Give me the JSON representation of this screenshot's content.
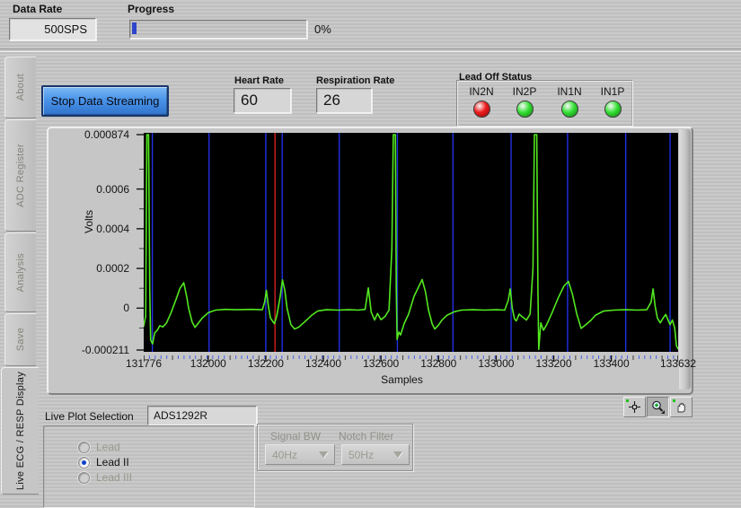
{
  "header": {
    "data_rate_label": "Data Rate",
    "data_rate_value": "500SPS",
    "progress_label": "Progress",
    "progress_percent": "0%"
  },
  "tabs": [
    {
      "label": "About",
      "selected": false
    },
    {
      "label": "ADC Register",
      "selected": false
    },
    {
      "label": "Analysis",
      "selected": false
    },
    {
      "label": "Save",
      "selected": false
    },
    {
      "label": "Live ECG / RESP Display",
      "selected": true
    }
  ],
  "controls": {
    "stop_button_label": "Stop Data Streaming",
    "heart_rate_label": "Heart Rate",
    "heart_rate_value": "60",
    "respiration_rate_label": "Respiration Rate",
    "respiration_rate_value": "26"
  },
  "lead_off": {
    "label": "Lead Off Status",
    "leds": [
      {
        "name": "IN2N",
        "state": "off",
        "color": "#ee1b1b",
        "dark": "#8f0d0d"
      },
      {
        "name": "IN2P",
        "state": "on",
        "color": "#35e035",
        "dark": "#168216"
      },
      {
        "name": "IN1N",
        "state": "on",
        "color": "#35e035",
        "dark": "#168216"
      },
      {
        "name": "IN1P",
        "state": "on",
        "color": "#35e035",
        "dark": "#168216"
      }
    ]
  },
  "chart_data": {
    "type": "line",
    "title": "",
    "xlabel": "Samples",
    "ylabel": "Volts",
    "xlim": [
      131776,
      133632
    ],
    "ylim": [
      -0.000211,
      0.000874
    ],
    "plot_bg": "#000000",
    "trace_color": "#52e81f",
    "gridline_color": "#2230e2",
    "cursor_color": "#d42020",
    "x_ticks": [
      131776,
      132000,
      132200,
      132400,
      132600,
      132800,
      133000,
      133200,
      133400,
      133632
    ],
    "x_minor_step": 20,
    "x_mid_step": 100,
    "y_ticks": [
      {
        "label": "0.000874",
        "v": 0.000874
      },
      {
        "label": "0.0006",
        "v": 0.0006
      },
      {
        "label": "0.0004",
        "v": 0.0004
      },
      {
        "label": "0.0002",
        "v": 0.0002
      },
      {
        "label": "0",
        "v": 0
      },
      {
        "label": "-0.000211",
        "v": -0.000211
      }
    ],
    "y_minor": [
      0.0007,
      0.0005,
      0.0003,
      0.0001,
      -0.0001
    ],
    "v_gridlines": [
      131806,
      132003,
      132200,
      132257,
      132455,
      132657,
      132850,
      133052,
      133248,
      133450,
      133604
    ],
    "cursor_x": 132232,
    "series": [
      {
        "name": "Lead II ECG",
        "points": [
          [
            131776,
            -9e-05
          ],
          [
            131783,
            -4e-05
          ],
          [
            131787,
            0.000874
          ],
          [
            131793,
            0.000874
          ],
          [
            131797,
            0.0001
          ],
          [
            131800,
            -0.00016
          ],
          [
            131807,
            -0.00018
          ],
          [
            131814,
            -0.000125
          ],
          [
            131823,
            -0.000111
          ],
          [
            131832,
            -8.8e-05
          ],
          [
            131842,
            -9.5e-05
          ],
          [
            131855,
            -7.5e-05
          ],
          [
            131870,
            -2.7e-05
          ],
          [
            131888,
            4.3e-05
          ],
          [
            131902,
            0.0001
          ],
          [
            131915,
            0.000128
          ],
          [
            131925,
            6e-05
          ],
          [
            131932,
            0
          ],
          [
            131944,
            -7e-05
          ],
          [
            131954,
            -9.7e-05
          ],
          [
            131966,
            -7.5e-05
          ],
          [
            131979,
            -5e-05
          ],
          [
            132001,
            -2.2e-05
          ],
          [
            132026,
            -1e-05
          ],
          [
            132060,
            -6e-06
          ],
          [
            132100,
            -8e-06
          ],
          [
            132150,
            -6e-06
          ],
          [
            132188,
            -8e-06
          ],
          [
            132196,
            3e-05
          ],
          [
            132202,
            8.9e-05
          ],
          [
            132209,
            1e-05
          ],
          [
            132216,
            -5e-05
          ],
          [
            132230,
            -7.8e-05
          ],
          [
            132238,
            -4e-05
          ],
          [
            132250,
            6e-05
          ],
          [
            132258,
            0.000142
          ],
          [
            132266,
            9e-05
          ],
          [
            132274,
            0
          ],
          [
            132287,
            -8.2e-05
          ],
          [
            132300,
            -0.000105
          ],
          [
            132315,
            -9.5e-05
          ],
          [
            132338,
            -6.5e-05
          ],
          [
            132360,
            -3.5e-05
          ],
          [
            132380,
            -1.5e-05
          ],
          [
            132410,
            -8e-06
          ],
          [
            132450,
            -1e-05
          ],
          [
            132490,
            -8e-06
          ],
          [
            132520,
            -1e-05
          ],
          [
            132545,
            -6e-06
          ],
          [
            132556,
            0.000102
          ],
          [
            132566,
            -2e-05
          ],
          [
            132578,
            -6e-05
          ],
          [
            132588,
            -2.7e-05
          ],
          [
            132600,
            -5.8e-05
          ],
          [
            132615,
            -4e-05
          ],
          [
            132628,
            -1e-05
          ],
          [
            132638,
            0.0003
          ],
          [
            132643,
            0.000874
          ],
          [
            132650,
            0.000874
          ],
          [
            132653,
            0.0001
          ],
          [
            132656,
            -0.000157
          ],
          [
            132662,
            -0.00012
          ],
          [
            132668,
            -0.000135
          ],
          [
            132680,
            -8e-05
          ],
          [
            132696,
            -3e-05
          ],
          [
            132715,
            6e-05
          ],
          [
            132735,
            0.00012
          ],
          [
            132743,
            0.000144
          ],
          [
            132755,
            8e-05
          ],
          [
            132765,
            -1e-05
          ],
          [
            132778,
            -8e-05
          ],
          [
            132787,
            -0.000105
          ],
          [
            132800,
            -8.5e-05
          ],
          [
            132812,
            -6e-05
          ],
          [
            132830,
            -3.5e-05
          ],
          [
            132855,
            -1.8e-05
          ],
          [
            132880,
            -1e-05
          ],
          [
            132920,
            -8e-06
          ],
          [
            132960,
            -1e-05
          ],
          [
            133000,
            -8e-06
          ],
          [
            133030,
            -1e-05
          ],
          [
            133042,
            4e-05
          ],
          [
            133049,
            9.7e-05
          ],
          [
            133056,
            0
          ],
          [
            133064,
            -5.5e-05
          ],
          [
            133070,
            -6.4e-05
          ],
          [
            133080,
            -3e-05
          ],
          [
            133092,
            -4.5e-05
          ],
          [
            133105,
            -6e-05
          ],
          [
            133118,
            -3e-05
          ],
          [
            133128,
            0.0002
          ],
          [
            133133,
            0.000874
          ],
          [
            133141,
            0.000874
          ],
          [
            133145,
            0.0001
          ],
          [
            133148,
            -0.000208
          ],
          [
            133155,
            -7.4e-05
          ],
          [
            133164,
            -0.000111
          ],
          [
            133175,
            -8.5e-05
          ],
          [
            133195,
            -2e-05
          ],
          [
            133215,
            5e-05
          ],
          [
            133235,
            0.00011
          ],
          [
            133251,
            0.000135
          ],
          [
            133265,
            7e-05
          ],
          [
            133280,
            -3e-05
          ],
          [
            133295,
            -0.000102
          ],
          [
            133310,
            -8.5e-05
          ],
          [
            133330,
            -6e-05
          ],
          [
            133345,
            -3.5e-05
          ],
          [
            133373,
            -1.5e-05
          ],
          [
            133410,
            -1e-05
          ],
          [
            133450,
            -8e-06
          ],
          [
            133490,
            -1e-05
          ],
          [
            133523,
            -8e-06
          ],
          [
            133538,
            3e-05
          ],
          [
            133545,
            9.7e-05
          ],
          [
            133552,
            1e-05
          ],
          [
            133560,
            -5e-05
          ],
          [
            133570,
            -7.4e-05
          ],
          [
            133580,
            -5e-05
          ],
          [
            133589,
            -3.2e-05
          ],
          [
            133597,
            -6e-05
          ],
          [
            133604,
            -8.3e-05
          ],
          [
            133612,
            -6e-05
          ],
          [
            133620,
            -0.0001
          ],
          [
            133626,
            -0.00019
          ],
          [
            133632,
            -0.000205
          ]
        ]
      }
    ]
  },
  "palette": {
    "tools": [
      "cursor-tool",
      "zoom-tool",
      "pan-tool"
    ],
    "active_tool": "zoom-tool"
  },
  "bottom": {
    "live_plot_label": "Live Plot Selection",
    "live_plot_value": "ADS1292R",
    "radios": [
      {
        "label": "Lead",
        "state": "disabled"
      },
      {
        "label": "Lead II",
        "state": "selected"
      },
      {
        "label": "Lead III",
        "state": "disabled"
      }
    ],
    "signal_bw_label": "Signal BW",
    "signal_bw_value": "40Hz",
    "notch_label": "Notch Filter",
    "notch_value": "50Hz"
  }
}
